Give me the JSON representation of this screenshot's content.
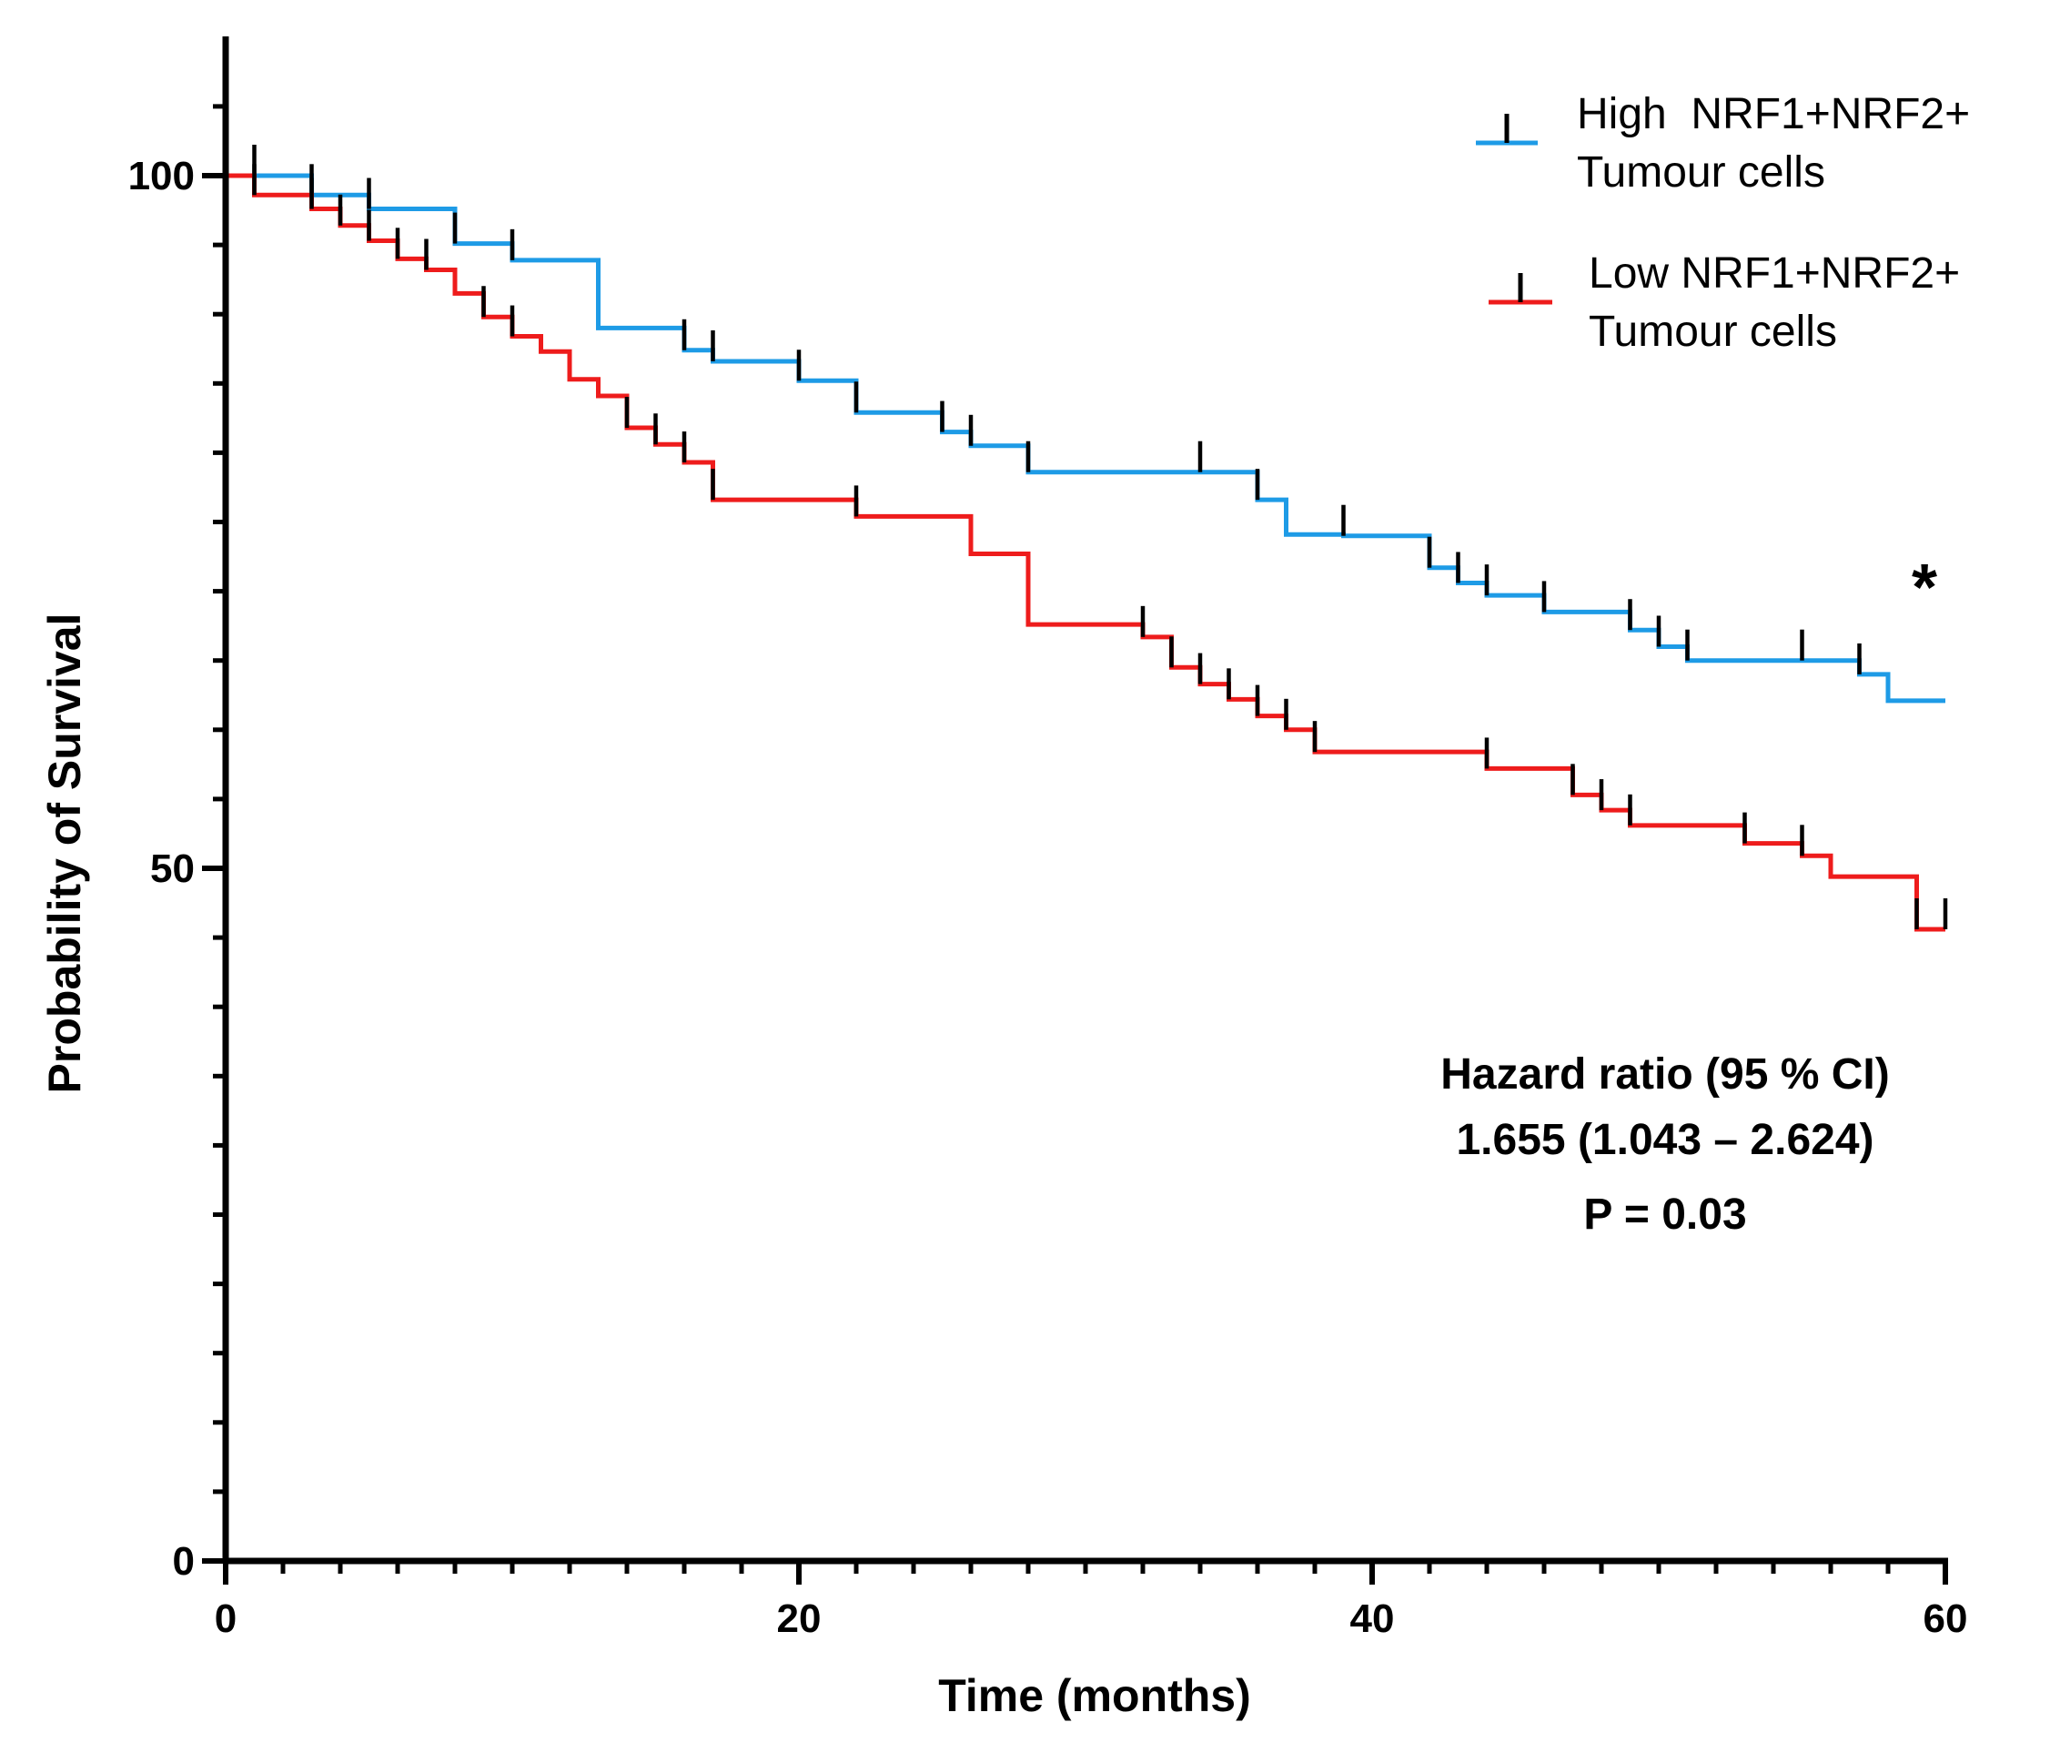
{
  "chart_data": {
    "type": "line",
    "subtype": "kaplan-meier",
    "title": "",
    "xlabel": "Time (months)",
    "ylabel": "Probability of Survival",
    "xlim": [
      0,
      60
    ],
    "ylim": [
      0,
      100
    ],
    "x_ticks": [
      0,
      20,
      40,
      60
    ],
    "y_ticks": [
      0,
      50,
      100
    ],
    "x_tick_labels": [
      "0",
      "20",
      "40",
      "60"
    ],
    "y_tick_labels": [
      "0",
      "50",
      "100"
    ],
    "x_minor_step": 2,
    "y_minor_step": 5,
    "series": [
      {
        "name": "High NRF1+NRF2+ Tumour cells",
        "legend_line1": "High  NRF1+NRF2+",
        "legend_line2": "Tumour cells",
        "color": "#1e9be6",
        "steps": [
          [
            0,
            100
          ],
          [
            3,
            98.6
          ],
          [
            5,
            97.6
          ],
          [
            8,
            95.1
          ],
          [
            10,
            93.9
          ],
          [
            13,
            89.0
          ],
          [
            16,
            87.4
          ],
          [
            17,
            86.6
          ],
          [
            20,
            85.2
          ],
          [
            22,
            82.9
          ],
          [
            25,
            81.5
          ],
          [
            26,
            80.5
          ],
          [
            28,
            78.6
          ],
          [
            36,
            76.6
          ],
          [
            37,
            74.1
          ],
          [
            39,
            74.0
          ],
          [
            40,
            74.0
          ],
          [
            42,
            71.7
          ],
          [
            43,
            70.6
          ],
          [
            44,
            69.7
          ],
          [
            46,
            68.5
          ],
          [
            49,
            67.2
          ],
          [
            50,
            66.0
          ],
          [
            51,
            65.0
          ],
          [
            57,
            64.0
          ],
          [
            58,
            62.1
          ],
          [
            60,
            62.1
          ]
        ],
        "censors": [
          1,
          3,
          5,
          8,
          10,
          16,
          17,
          20,
          22,
          25,
          26,
          28,
          34,
          36,
          39,
          42,
          43,
          44,
          46,
          49,
          50,
          51,
          55,
          57
        ]
      },
      {
        "name": "Low NRF1+NRF2+ Tumour cells",
        "legend_line1": "Low NRF1+NRF2+",
        "legend_line2": "Tumour cells",
        "color": "#ee1c1c",
        "steps": [
          [
            0,
            100
          ],
          [
            1,
            98.6
          ],
          [
            3,
            97.6
          ],
          [
            4,
            96.4
          ],
          [
            5,
            95.3
          ],
          [
            6,
            94.0
          ],
          [
            7,
            93.2
          ],
          [
            8,
            91.5
          ],
          [
            9,
            89.8
          ],
          [
            10,
            88.4
          ],
          [
            11,
            87.3
          ],
          [
            12,
            85.3
          ],
          [
            13,
            84.1
          ],
          [
            14,
            81.8
          ],
          [
            15,
            80.6
          ],
          [
            16,
            79.3
          ],
          [
            17,
            76.6
          ],
          [
            22,
            75.4
          ],
          [
            26,
            72.7
          ],
          [
            28,
            67.6
          ],
          [
            32,
            66.7
          ],
          [
            33,
            64.5
          ],
          [
            34,
            63.3
          ],
          [
            35,
            62.2
          ],
          [
            36,
            61.0
          ],
          [
            37,
            60.0
          ],
          [
            38,
            58.4
          ],
          [
            44,
            57.2
          ],
          [
            47,
            55.3
          ],
          [
            48,
            54.2
          ],
          [
            49,
            53.1
          ],
          [
            53,
            51.8
          ],
          [
            55,
            50.9
          ],
          [
            56,
            49.4
          ],
          [
            59,
            45.6
          ],
          [
            60,
            45.6
          ]
        ],
        "censors": [
          1,
          3,
          4,
          5,
          6,
          7,
          9,
          10,
          14,
          15,
          16,
          17,
          22,
          32,
          33,
          34,
          35,
          36,
          37,
          38,
          44,
          47,
          48,
          49,
          53,
          55,
          59,
          60
        ]
      }
    ],
    "annotations": {
      "star": "*",
      "hazard_title": "Hazard ratio (95 % CI)",
      "hazard_value": "1.655 (1.043 – 2.624)",
      "p_value": "P = 0.03"
    },
    "legend_position": "top-right",
    "grid": false
  }
}
